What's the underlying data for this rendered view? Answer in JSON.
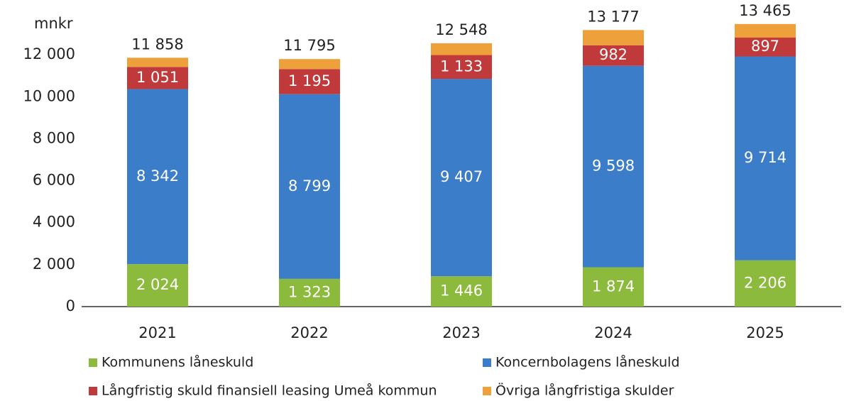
{
  "chart_data": {
    "type": "stacked_bar",
    "y_label": "mnkr",
    "categories": [
      "2021",
      "2022",
      "2023",
      "2024",
      "2025"
    ],
    "series": [
      {
        "name": "Kommunens låneskuld",
        "color": "#8cba3c",
        "values": [
          2024,
          1323,
          1446,
          1874,
          2206
        ],
        "value_labels": [
          "2 024",
          "1 323",
          "1 446",
          "1 874",
          "2 206"
        ]
      },
      {
        "name": "Koncernbolagens låneskuld",
        "color": "#3b7dc8",
        "values": [
          8342,
          8799,
          9407,
          9598,
          9714
        ],
        "value_labels": [
          "8 342",
          "8 799",
          "9 407",
          "9 598",
          "9 714"
        ]
      },
      {
        "name": "Långfristig skuld finansiell leasing Umeå kommun",
        "color": "#c03a3c",
        "values": [
          1051,
          1195,
          1133,
          982,
          897
        ],
        "value_labels": [
          "1 051",
          "1 195",
          "1 133",
          "982",
          "897"
        ]
      },
      {
        "name": "Övriga långfristiga skulder",
        "color": "#eea13a",
        "values": [
          441,
          478,
          562,
          723,
          648
        ]
      }
    ],
    "totals": [
      11858,
      11795,
      12548,
      13177,
      13465
    ],
    "total_labels": [
      "11 858",
      "11 795",
      "12 548",
      "13 177",
      "13 465"
    ],
    "ylim": [
      0,
      14000
    ],
    "yticks": [
      0,
      {
        "value": 2000,
        "label": "2 000"
      },
      {
        "value": 4000,
        "label": "4 000"
      },
      {
        "value": 6000,
        "label": "6 000"
      },
      {
        "value": 8000,
        "label": "8 000"
      },
      {
        "value": 10000,
        "label": "10 000"
      },
      {
        "value": 12000,
        "label": "12 000"
      }
    ]
  }
}
